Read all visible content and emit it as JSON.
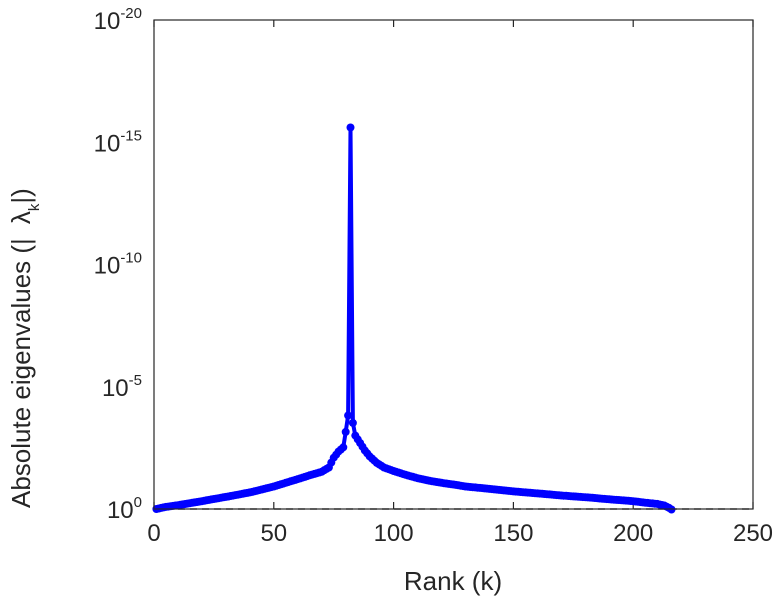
{
  "chart_data": {
    "type": "line",
    "title": "",
    "xlabel": "Rank (k)",
    "ylabel_main": "Absolute eigenvalues (|",
    "ylabel_symbol": "λ",
    "ylabel_sub": "k",
    "ylabel_tail": "|)",
    "xlim": [
      0,
      250
    ],
    "ylim_log10": [
      -20,
      0
    ],
    "yscale": "log",
    "grid": false,
    "x_ticks": [
      0,
      50,
      100,
      150,
      200,
      250
    ],
    "x_tick_labels": [
      "0",
      "50",
      "100",
      "150",
      "200",
      "250"
    ],
    "y_ticks_log10": [
      0,
      -5,
      -10,
      -15,
      -20
    ],
    "y_tick_base": "10",
    "y_tick_exponents": [
      "0",
      "-5",
      "-10",
      "-15",
      "-20"
    ],
    "reference_line": {
      "value": 1,
      "style": "dashed",
      "color": "#555555"
    },
    "series": [
      {
        "color": "#0000ff",
        "marker": "circle",
        "points": [
          [
            1,
            1.0
          ],
          [
            5,
            0.82
          ],
          [
            10,
            0.7
          ],
          [
            15,
            0.58
          ],
          [
            20,
            0.48
          ],
          [
            25,
            0.39
          ],
          [
            30,
            0.32
          ],
          [
            35,
            0.26
          ],
          [
            40,
            0.21
          ],
          [
            45,
            0.16
          ],
          [
            50,
            0.12
          ],
          [
            55,
            0.085
          ],
          [
            60,
            0.06
          ],
          [
            65,
            0.042
          ],
          [
            70,
            0.03
          ],
          [
            73,
            0.02
          ],
          [
            75,
            0.008
          ],
          [
            77,
            0.0045
          ],
          [
            79,
            0.003
          ],
          [
            80,
            0.0007
          ],
          [
            81,
            0.00015
          ],
          [
            82,
            2.5e-16
          ],
          [
            83,
            0.0003
          ],
          [
            84,
            0.001
          ],
          [
            86,
            0.002
          ],
          [
            88,
            0.004
          ],
          [
            90,
            0.007
          ],
          [
            93,
            0.013
          ],
          [
            96,
            0.02
          ],
          [
            100,
            0.028
          ],
          [
            105,
            0.04
          ],
          [
            110,
            0.055
          ],
          [
            115,
            0.07
          ],
          [
            120,
            0.085
          ],
          [
            125,
            0.1
          ],
          [
            130,
            0.12
          ],
          [
            140,
            0.15
          ],
          [
            150,
            0.19
          ],
          [
            160,
            0.23
          ],
          [
            170,
            0.28
          ],
          [
            180,
            0.33
          ],
          [
            190,
            0.4
          ],
          [
            200,
            0.48
          ],
          [
            205,
            0.55
          ],
          [
            210,
            0.62
          ],
          [
            213,
            0.72
          ],
          [
            215,
            0.9
          ],
          [
            216,
            1.05
          ]
        ]
      }
    ]
  }
}
